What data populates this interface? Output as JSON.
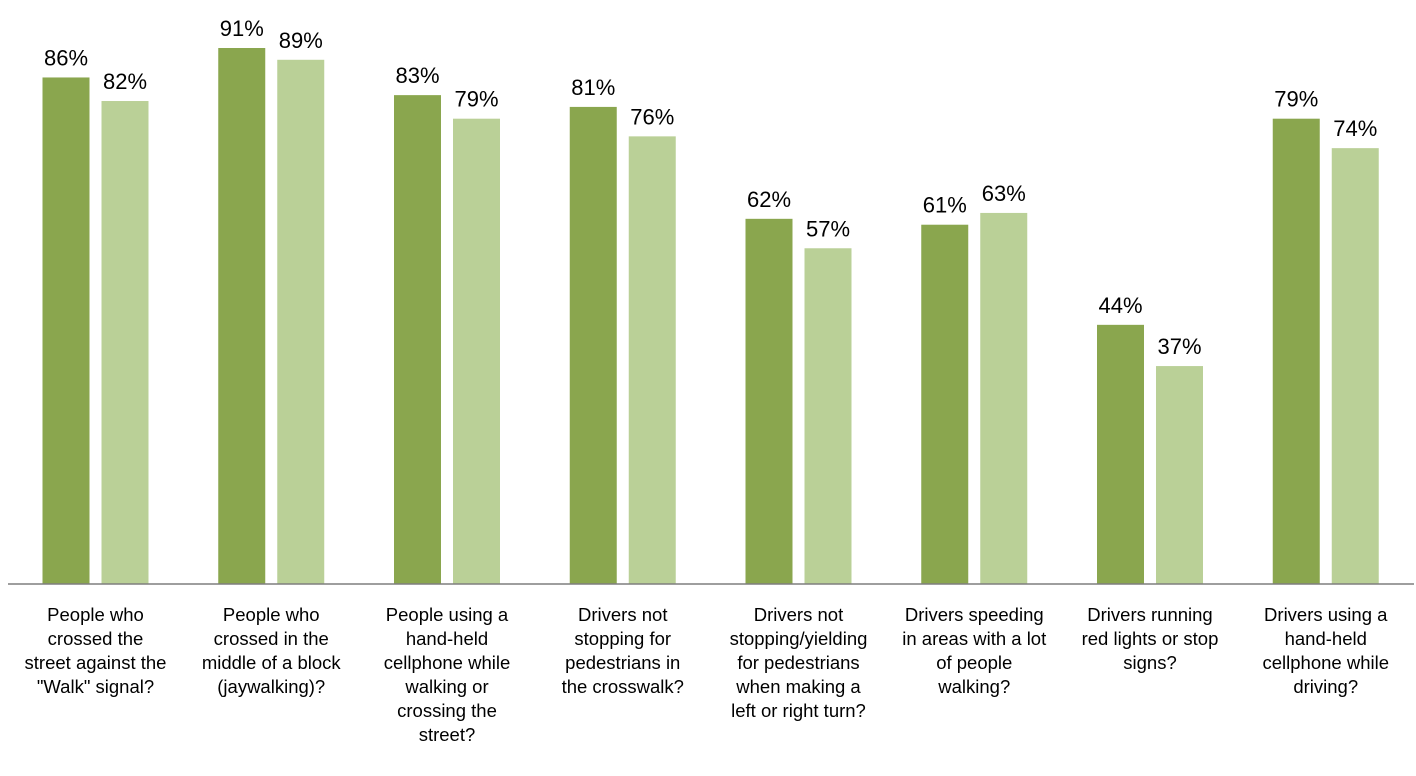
{
  "chart_data": {
    "type": "bar",
    "categories": [
      "People who\ncrossed the\nstreet against the\n\"Walk\" signal?",
      "People who\ncrossed in the\nmiddle of a block\n(jaywalking)?",
      "People using a\nhand-held\ncellphone while\nwalking or\ncrossing the\nstreet?",
      "Drivers not\nstopping for\npedestrians in\nthe crosswalk?",
      "Drivers not\nstopping/yielding\nfor pedestrians\nwhen making a\nleft or right turn?",
      "Drivers speeding\nin areas with a lot\nof people\nwalking?",
      "Drivers running\nred lights or stop\nsigns?",
      "Drivers using a\nhand-held\ncellphone while\ndriving?"
    ],
    "series": [
      {
        "values": [
          86,
          91,
          83,
          81,
          62,
          61,
          44,
          79
        ],
        "color": "#8aa64e"
      },
      {
        "values": [
          82,
          89,
          79,
          76,
          57,
          63,
          37,
          74
        ],
        "color": "#bad097"
      }
    ],
    "value_labels": [
      [
        "86%",
        "91%",
        "83%",
        "81%",
        "62%",
        "61%",
        "44%",
        "79%"
      ],
      [
        "82%",
        "89%",
        "79%",
        "76%",
        "57%",
        "63%",
        "37%",
        "74%"
      ]
    ],
    "ylim": [
      0,
      100
    ],
    "grid": false,
    "legend": "none",
    "axis_color": "#7f7f7f"
  }
}
